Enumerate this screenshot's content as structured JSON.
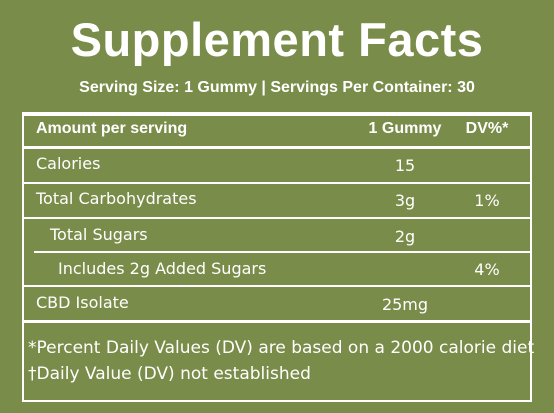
{
  "header": {
    "title": "Supplement Facts",
    "serving": "Serving Size: 1 Gummy | Servings Per Container: 30"
  },
  "table": {
    "columns": [
      "Amount per serving",
      "1 Gummy",
      "DV%*"
    ],
    "rows": [
      {
        "label": "Calories",
        "amount": "15"
      },
      {
        "label": "Total Carbohydrates",
        "amount": "3g",
        "dv": "1%"
      },
      {
        "label": "Total Sugars",
        "amount": "2g"
      },
      {
        "label": "Includes 2g Added Sugars",
        "dv": "4%"
      },
      {
        "label": "CBD Isolate",
        "amount": "25mg"
      }
    ]
  },
  "footnotes": [
    "*Percent Daily Values (DV) are based on a 2000 calorie diet",
    "†Daily Value (DV) not established"
  ]
}
